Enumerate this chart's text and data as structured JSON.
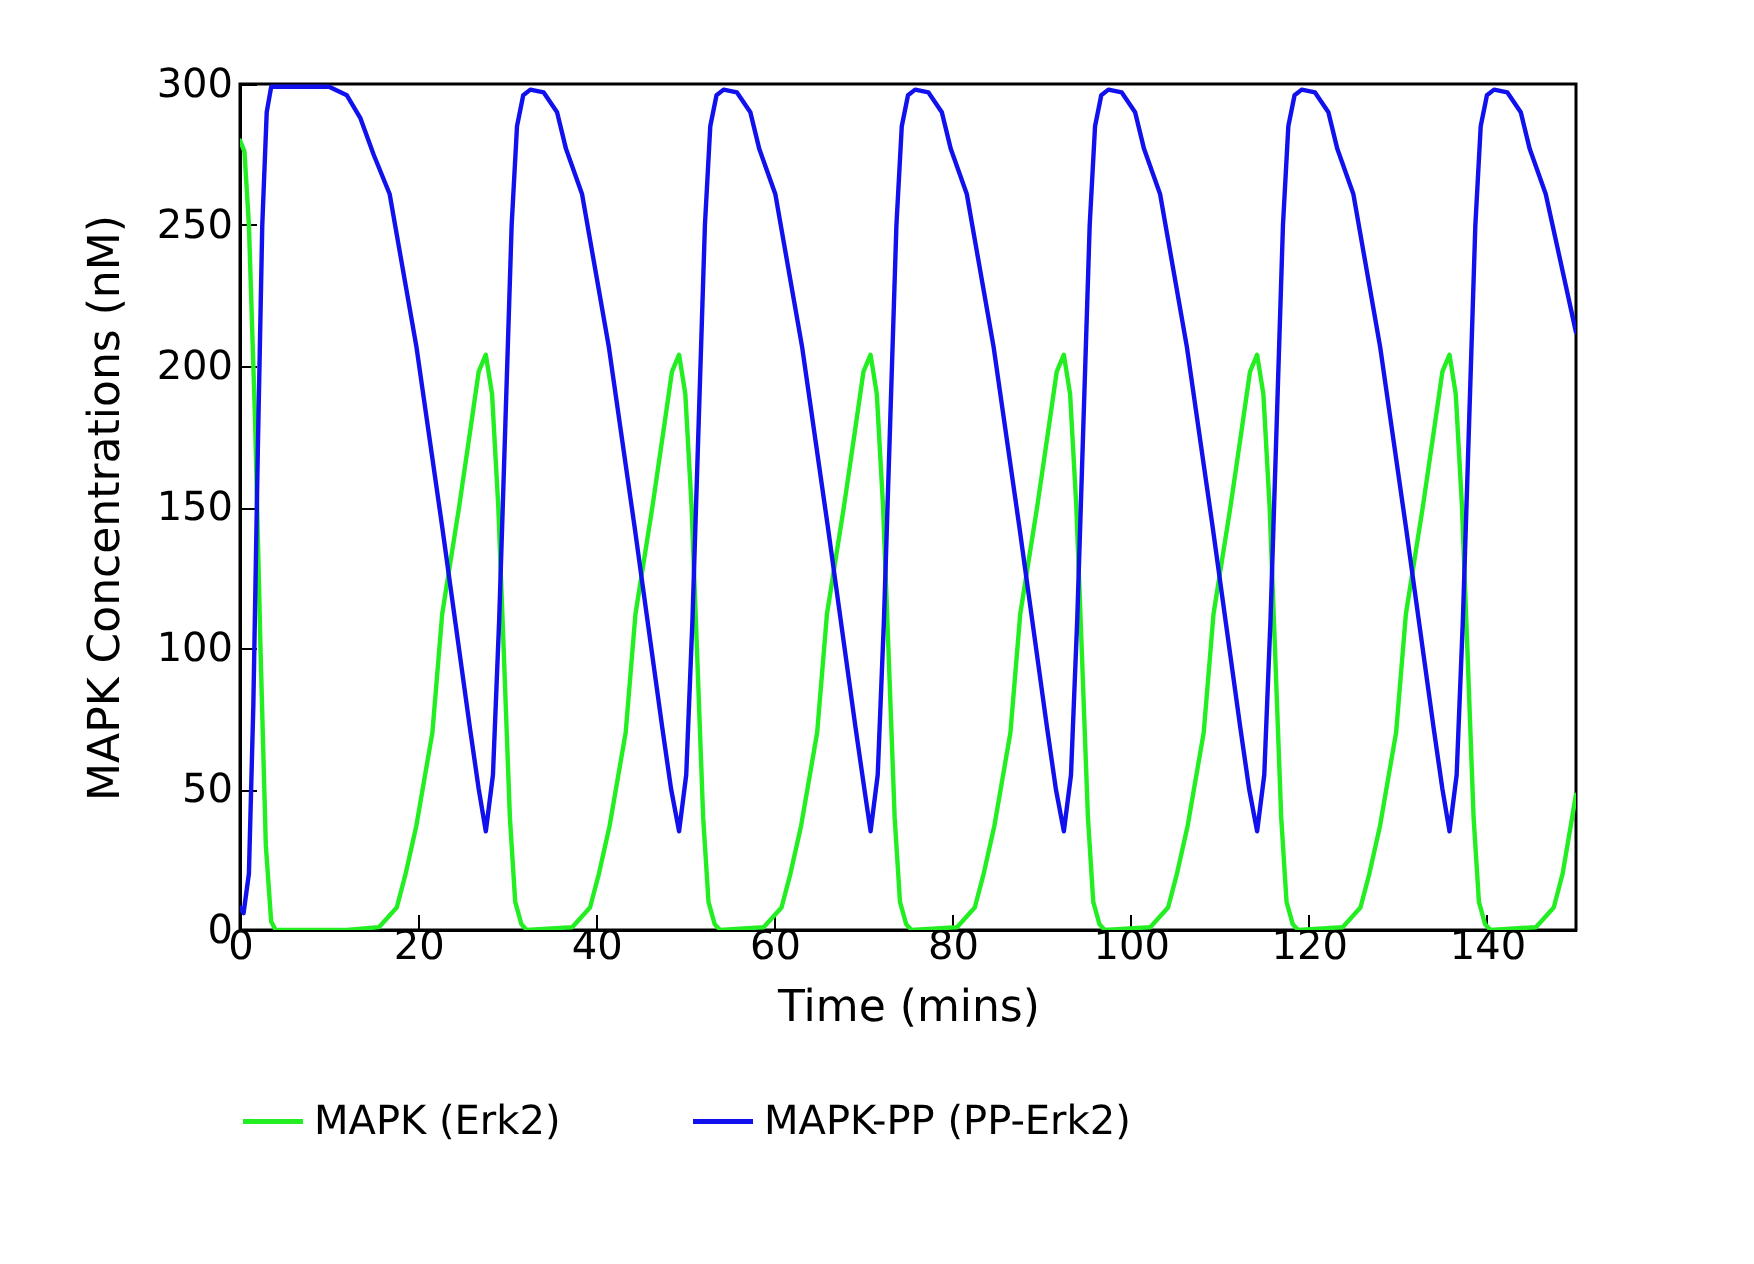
{
  "chart_data": {
    "type": "line",
    "xlabel": "Time (mins)",
    "ylabel": "MAPK Concentrations (nM)",
    "xlim": [
      0,
      150
    ],
    "ylim": [
      0,
      300
    ],
    "xticks": [
      0,
      20,
      40,
      60,
      80,
      100,
      120,
      140
    ],
    "yticks": [
      0,
      50,
      100,
      150,
      200,
      250,
      300
    ],
    "grid": false,
    "legend": "bottom",
    "line_style": "solid",
    "marker": "none",
    "series": [
      {
        "name": "MAPK (Erk2)",
        "color": "#22ee22",
        "x": [
          0,
          0.5,
          1,
          1.7,
          2.3,
          2.9,
          3.5,
          4,
          12,
          15.6,
          17.6,
          18.6,
          19.8,
          21.6,
          22.7,
          24.6,
          25.8,
          26.8,
          27.6,
          28.3,
          29,
          29.6,
          30.3,
          30.9,
          31.6,
          32.2,
          37.3,
          39.3,
          40.3,
          41.5,
          43.3,
          44.4,
          46.3,
          47.5,
          48.5,
          49.3,
          50,
          50.7,
          51.3,
          52,
          52.6,
          53.3,
          53.9,
          58.8,
          60.8,
          61.8,
          63,
          64.8,
          65.9,
          67.8,
          69,
          70,
          70.8,
          71.5,
          72.2,
          72.8,
          73.5,
          74.1,
          74.8,
          75.4,
          80.5,
          82.5,
          83.5,
          84.7,
          86.5,
          87.6,
          89.5,
          90.7,
          91.7,
          92.5,
          93.2,
          93.9,
          94.5,
          95.2,
          95.8,
          96.5,
          97.1,
          102.2,
          104.2,
          105.2,
          106.4,
          108.2,
          109.3,
          111.2,
          112.4,
          113.4,
          114.2,
          114.9,
          115.6,
          116.2,
          116.9,
          117.5,
          118.2,
          118.8,
          123.8,
          125.8,
          126.8,
          128,
          129.8,
          130.9,
          132.8,
          134,
          135,
          135.8,
          136.5,
          137.2,
          137.8,
          138.5,
          139.1,
          139.8,
          140.4,
          145.5,
          147.5,
          148.5,
          150
        ],
        "values": [
          280,
          276,
          250,
          180,
          100,
          30,
          3,
          0,
          0,
          1,
          8,
          20,
          37,
          70,
          112,
          150,
          176,
          198,
          204,
          190,
          150,
          100,
          40,
          10,
          2,
          0,
          1,
          8,
          20,
          37,
          70,
          112,
          150,
          176,
          198,
          204,
          190,
          150,
          100,
          40,
          10,
          2,
          0,
          1,
          8,
          20,
          37,
          70,
          112,
          150,
          176,
          198,
          204,
          190,
          150,
          100,
          40,
          10,
          2,
          0,
          1,
          8,
          20,
          37,
          70,
          112,
          150,
          176,
          198,
          204,
          190,
          150,
          100,
          40,
          10,
          2,
          0,
          1,
          8,
          20,
          37,
          70,
          112,
          150,
          176,
          198,
          204,
          190,
          150,
          100,
          40,
          10,
          2,
          0,
          1,
          8,
          20,
          37,
          70,
          112,
          150,
          176,
          198,
          204,
          190,
          150,
          100,
          40,
          10,
          2,
          0,
          1,
          8,
          20,
          48
        ]
      },
      {
        "name": "MAPK-PP (PP-Erk2)",
        "color": "#1111ee",
        "x": [
          0,
          0.4,
          1,
          1.5,
          2,
          2.5,
          3,
          3.5,
          10,
          12,
          13.5,
          15,
          16.8,
          19.8,
          22.7,
          25.8,
          26.8,
          27.6,
          28.4,
          29.1,
          29.8,
          30.5,
          31.1,
          31.8,
          32.6,
          34.1,
          35.6,
          36.6,
          38.4,
          41.4,
          44.3,
          47.4,
          48.4,
          49.3,
          50.1,
          50.8,
          51.5,
          52.2,
          52.8,
          53.5,
          54.3,
          55.8,
          57.3,
          58.3,
          60.1,
          63.1,
          66,
          69.1,
          70.1,
          70.8,
          71.6,
          72.3,
          73,
          73.7,
          74.3,
          75,
          75.8,
          77.3,
          78.8,
          79.8,
          81.6,
          84.6,
          87.5,
          90.6,
          91.6,
          92.5,
          93.3,
          94,
          94.7,
          95.4,
          96,
          96.7,
          97.5,
          99,
          100.5,
          101.5,
          103.3,
          106.3,
          109.2,
          112.3,
          113.3,
          114.2,
          115,
          115.7,
          116.4,
          117.1,
          117.7,
          118.4,
          119.2,
          120.7,
          122.2,
          123.2,
          125,
          128,
          130.9,
          134,
          135,
          135.8,
          136.6,
          137.3,
          138,
          138.7,
          139.3,
          140,
          140.8,
          142.3,
          143.8,
          144.8,
          146.6,
          150
        ],
        "values": [
          8,
          6,
          20,
          80,
          170,
          250,
          290,
          299,
          299,
          296,
          288,
          275,
          261,
          207,
          143,
          72,
          50,
          35,
          55,
          110,
          180,
          250,
          285,
          296,
          298,
          297,
          290,
          277,
          261,
          207,
          143,
          72,
          50,
          35,
          55,
          110,
          180,
          250,
          285,
          296,
          298,
          297,
          290,
          277,
          261,
          207,
          143,
          72,
          50,
          35,
          55,
          110,
          180,
          250,
          285,
          296,
          298,
          297,
          290,
          277,
          261,
          207,
          143,
          72,
          50,
          35,
          55,
          110,
          180,
          250,
          285,
          296,
          298,
          297,
          290,
          277,
          261,
          207,
          143,
          72,
          50,
          35,
          55,
          110,
          180,
          250,
          285,
          296,
          298,
          297,
          290,
          277,
          261,
          207,
          143,
          72,
          50,
          35,
          55,
          110,
          180,
          250,
          285,
          296,
          298,
          297,
          290,
          277,
          261,
          212
        ]
      }
    ]
  }
}
